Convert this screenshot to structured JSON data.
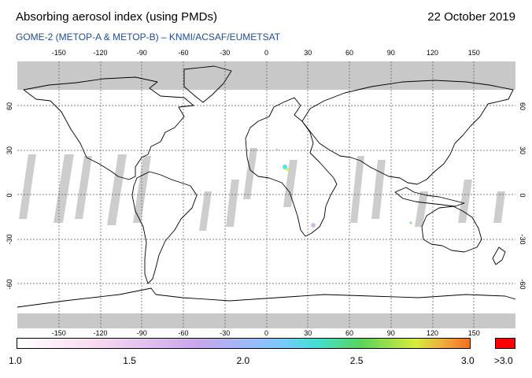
{
  "header": {
    "title": "Absorbing aerosol index (using PMDs)",
    "date": "22 October 2019",
    "subtitle": "GOME-2 (METOP-A & METOP-B)  –  KNMI/ACSAF/EUMETSAT"
  },
  "map": {
    "lon_ticks": [
      "-150",
      "-120",
      "-90",
      "-60",
      "-30",
      "0",
      "30",
      "60",
      "90",
      "120",
      "150"
    ],
    "lat_ticks": [
      "60",
      "30",
      "0",
      "-30",
      "-60"
    ],
    "lon_range": [
      -180,
      180
    ],
    "lat_range": [
      -90,
      90
    ],
    "grid": true,
    "colors": {
      "no_data": "#c8c8c8",
      "coastline": "#000000",
      "gridline": "#555555"
    }
  },
  "colorbar": {
    "labels": [
      "1.0",
      "1.5",
      "2.0",
      "2.5",
      "3.0"
    ],
    "over_label": ">3.0",
    "range": [
      1.0,
      3.0
    ],
    "colors": [
      "#ffffff",
      "#f7d8f0",
      "#c9a6ee",
      "#7ec8ff",
      "#43e0d6",
      "#5ad45a",
      "#d8ec3c",
      "#f2a23a",
      "#f07020"
    ],
    "over_color": "#ff0000"
  }
}
